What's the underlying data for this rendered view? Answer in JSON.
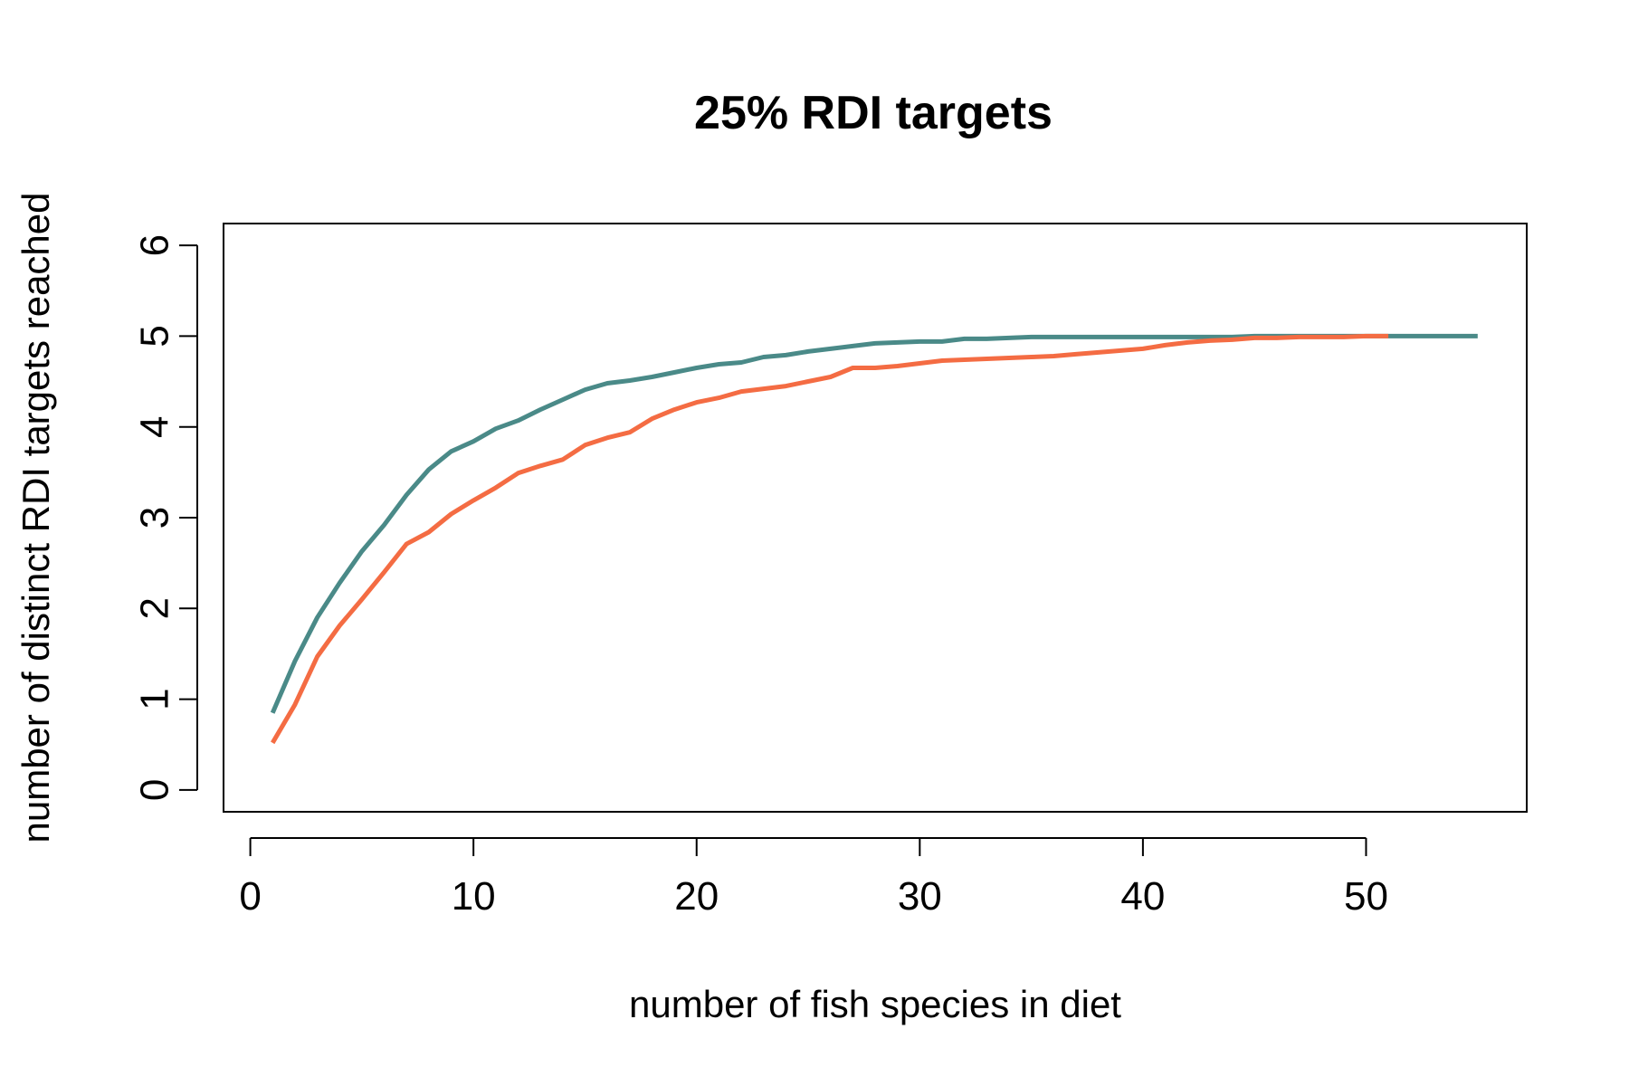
{
  "chart_data": {
    "type": "line",
    "title": "25% RDI targets",
    "xlabel": "number of fish species in diet",
    "ylabel": "number of distinct RDI targets reached",
    "xlim": [
      -1.2,
      57.2
    ],
    "ylim": [
      -0.24,
      6.24
    ],
    "x_ticks": [
      "0",
      "10",
      "20",
      "30",
      "40",
      "50"
    ],
    "x_tick_values": [
      0,
      10,
      20,
      30,
      40,
      50
    ],
    "y_ticks": [
      "0",
      "1",
      "2",
      "3",
      "4",
      "5",
      "6"
    ],
    "y_tick_values": [
      0,
      1,
      2,
      3,
      4,
      5,
      6
    ],
    "grid": false,
    "legend": "none",
    "series": [
      {
        "color": "#4a8a88",
        "x": [
          1,
          2,
          3,
          4,
          5,
          6,
          7,
          8,
          9,
          10,
          11,
          12,
          13,
          14,
          15,
          16,
          17,
          18,
          19,
          20,
          21,
          22,
          23,
          24,
          25,
          26,
          27,
          28,
          29,
          30,
          31,
          32,
          33,
          34,
          35,
          36,
          37,
          38,
          39,
          40,
          41,
          42,
          43,
          44,
          45,
          46,
          47,
          48,
          49,
          50,
          51,
          52,
          53,
          54,
          55
        ],
        "values": [
          0.85,
          1.42,
          1.9,
          2.28,
          2.63,
          2.92,
          3.25,
          3.53,
          3.73,
          3.84,
          3.98,
          4.07,
          4.19,
          4.3,
          4.41,
          4.48,
          4.51,
          4.55,
          4.6,
          4.65,
          4.69,
          4.71,
          4.77,
          4.79,
          4.83,
          4.86,
          4.89,
          4.92,
          4.93,
          4.94,
          4.94,
          4.97,
          4.97,
          4.98,
          4.99,
          4.99,
          4.99,
          4.99,
          4.99,
          4.99,
          4.99,
          4.99,
          4.99,
          4.99,
          5.0,
          5.0,
          5.0,
          5.0,
          5.0,
          5.0,
          5.0,
          5.0,
          5.0,
          5.0,
          5.0
        ]
      },
      {
        "color": "#f46c43",
        "x": [
          1,
          2,
          3,
          4,
          5,
          6,
          7,
          8,
          9,
          10,
          11,
          12,
          13,
          14,
          15,
          16,
          17,
          18,
          19,
          20,
          21,
          22,
          23,
          24,
          25,
          26,
          27,
          28,
          29,
          30,
          31,
          32,
          33,
          34,
          35,
          36,
          37,
          38,
          39,
          40,
          41,
          42,
          43,
          44,
          45,
          46,
          47,
          48,
          49,
          50,
          51
        ],
        "values": [
          0.52,
          0.94,
          1.47,
          1.81,
          2.1,
          2.4,
          2.71,
          2.84,
          3.04,
          3.19,
          3.33,
          3.49,
          3.57,
          3.64,
          3.8,
          3.88,
          3.94,
          4.09,
          4.19,
          4.27,
          4.32,
          4.39,
          4.42,
          4.45,
          4.5,
          4.55,
          4.65,
          4.65,
          4.67,
          4.7,
          4.73,
          4.74,
          4.75,
          4.76,
          4.77,
          4.78,
          4.8,
          4.82,
          4.84,
          4.86,
          4.9,
          4.93,
          4.95,
          4.96,
          4.98,
          4.98,
          4.99,
          4.99,
          4.99,
          5.0,
          5.0
        ]
      }
    ]
  }
}
